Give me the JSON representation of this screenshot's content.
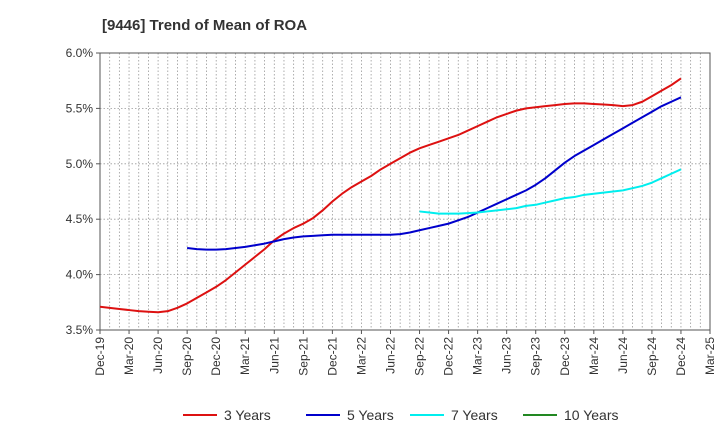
{
  "chart_data": {
    "type": "line",
    "title": "[9446]  Trend of Mean of ROA",
    "x_ticks": [
      "Dec-19",
      "Mar-20",
      "Jun-20",
      "Sep-20",
      "Dec-20",
      "Mar-21",
      "Jun-21",
      "Sep-21",
      "Dec-21",
      "Mar-22",
      "Jun-22",
      "Sep-22",
      "Dec-22",
      "Mar-23",
      "Jun-23",
      "Sep-23",
      "Dec-23",
      "Mar-24",
      "Jun-24",
      "Sep-24",
      "Dec-24",
      "Mar-25"
    ],
    "y_ticks": [
      "3.5%",
      "4.0%",
      "4.5%",
      "5.0%",
      "5.5%",
      "6.0%"
    ],
    "ylim": [
      3.5,
      6.0
    ],
    "grid": true,
    "legend_position": "bottom",
    "series": [
      {
        "name": "3 Years",
        "color": "#dd1111",
        "points": [
          [
            "Dec-19",
            3.71
          ],
          [
            "Jan-20",
            3.7
          ],
          [
            "Feb-20",
            3.69
          ],
          [
            "Mar-20",
            3.68
          ],
          [
            "Apr-20",
            3.67
          ],
          [
            "May-20",
            3.665
          ],
          [
            "Jun-20",
            3.66
          ],
          [
            "Jul-20",
            3.67
          ],
          [
            "Aug-20",
            3.7
          ],
          [
            "Sep-20",
            3.74
          ],
          [
            "Oct-20",
            3.79
          ],
          [
            "Nov-20",
            3.84
          ],
          [
            "Dec-20",
            3.89
          ],
          [
            "Jan-21",
            3.95
          ],
          [
            "Feb-21",
            4.02
          ],
          [
            "Mar-21",
            4.09
          ],
          [
            "Apr-21",
            4.16
          ],
          [
            "May-21",
            4.23
          ],
          [
            "Jun-21",
            4.31
          ],
          [
            "Jul-21",
            4.37
          ],
          [
            "Aug-21",
            4.42
          ],
          [
            "Sep-21",
            4.46
          ],
          [
            "Oct-21",
            4.51
          ],
          [
            "Nov-21",
            4.58
          ],
          [
            "Dec-21",
            4.66
          ],
          [
            "Jan-22",
            4.73
          ],
          [
            "Feb-22",
            4.79
          ],
          [
            "Mar-22",
            4.84
          ],
          [
            "Apr-22",
            4.89
          ],
          [
            "May-22",
            4.95
          ],
          [
            "Jun-22",
            5.0
          ],
          [
            "Jul-22",
            5.05
          ],
          [
            "Aug-22",
            5.1
          ],
          [
            "Sep-22",
            5.14
          ],
          [
            "Oct-22",
            5.17
          ],
          [
            "Nov-22",
            5.2
          ],
          [
            "Dec-22",
            5.23
          ],
          [
            "Jan-23",
            5.26
          ],
          [
            "Feb-23",
            5.3
          ],
          [
            "Mar-23",
            5.34
          ],
          [
            "Apr-23",
            5.38
          ],
          [
            "May-23",
            5.42
          ],
          [
            "Jun-23",
            5.45
          ],
          [
            "Jul-23",
            5.48
          ],
          [
            "Aug-23",
            5.5
          ],
          [
            "Sep-23",
            5.51
          ],
          [
            "Oct-23",
            5.52
          ],
          [
            "Nov-23",
            5.53
          ],
          [
            "Dec-23",
            5.54
          ],
          [
            "Jan-24",
            5.545
          ],
          [
            "Feb-24",
            5.545
          ],
          [
            "Mar-24",
            5.54
          ],
          [
            "Apr-24",
            5.535
          ],
          [
            "May-24",
            5.53
          ],
          [
            "Jun-24",
            5.52
          ],
          [
            "Jul-24",
            5.53
          ],
          [
            "Aug-24",
            5.56
          ],
          [
            "Sep-24",
            5.61
          ],
          [
            "Oct-24",
            5.66
          ],
          [
            "Nov-24",
            5.71
          ],
          [
            "Dec-24",
            5.77
          ]
        ]
      },
      {
        "name": "5 Years",
        "color": "#0000cc",
        "points": [
          [
            "Sep-20",
            4.24
          ],
          [
            "Oct-20",
            4.23
          ],
          [
            "Nov-20",
            4.225
          ],
          [
            "Dec-20",
            4.225
          ],
          [
            "Jan-21",
            4.23
          ],
          [
            "Feb-21",
            4.24
          ],
          [
            "Mar-21",
            4.25
          ],
          [
            "Apr-21",
            4.265
          ],
          [
            "May-21",
            4.28
          ],
          [
            "Jun-21",
            4.3
          ],
          [
            "Jul-21",
            4.32
          ],
          [
            "Aug-21",
            4.335
          ],
          [
            "Sep-21",
            4.345
          ],
          [
            "Oct-21",
            4.35
          ],
          [
            "Nov-21",
            4.355
          ],
          [
            "Dec-21",
            4.36
          ],
          [
            "Jan-22",
            4.36
          ],
          [
            "Feb-22",
            4.36
          ],
          [
            "Mar-22",
            4.36
          ],
          [
            "Apr-22",
            4.36
          ],
          [
            "May-22",
            4.36
          ],
          [
            "Jun-22",
            4.36
          ],
          [
            "Jul-22",
            4.365
          ],
          [
            "Aug-22",
            4.38
          ],
          [
            "Sep-22",
            4.4
          ],
          [
            "Oct-22",
            4.42
          ],
          [
            "Nov-22",
            4.44
          ],
          [
            "Dec-22",
            4.46
          ],
          [
            "Jan-23",
            4.49
          ],
          [
            "Feb-23",
            4.52
          ],
          [
            "Mar-23",
            4.56
          ],
          [
            "Apr-23",
            4.6
          ],
          [
            "May-23",
            4.64
          ],
          [
            "Jun-23",
            4.68
          ],
          [
            "Jul-23",
            4.72
          ],
          [
            "Aug-23",
            4.76
          ],
          [
            "Sep-23",
            4.81
          ],
          [
            "Oct-23",
            4.87
          ],
          [
            "Nov-23",
            4.94
          ],
          [
            "Dec-23",
            5.01
          ],
          [
            "Jan-24",
            5.07
          ],
          [
            "Feb-24",
            5.12
          ],
          [
            "Mar-24",
            5.17
          ],
          [
            "Apr-24",
            5.22
          ],
          [
            "May-24",
            5.27
          ],
          [
            "Jun-24",
            5.32
          ],
          [
            "Jul-24",
            5.37
          ],
          [
            "Aug-24",
            5.42
          ],
          [
            "Sep-24",
            5.47
          ],
          [
            "Oct-24",
            5.52
          ],
          [
            "Nov-24",
            5.56
          ],
          [
            "Dec-24",
            5.6
          ]
        ]
      },
      {
        "name": "7 Years",
        "color": "#00eeee",
        "points": [
          [
            "Sep-22",
            4.57
          ],
          [
            "Oct-22",
            4.56
          ],
          [
            "Nov-22",
            4.55
          ],
          [
            "Dec-22",
            4.55
          ],
          [
            "Jan-23",
            4.55
          ],
          [
            "Feb-23",
            4.555
          ],
          [
            "Mar-23",
            4.56
          ],
          [
            "Apr-23",
            4.57
          ],
          [
            "May-23",
            4.58
          ],
          [
            "Jun-23",
            4.59
          ],
          [
            "Jul-23",
            4.6
          ],
          [
            "Aug-23",
            4.62
          ],
          [
            "Sep-23",
            4.63
          ],
          [
            "Oct-23",
            4.65
          ],
          [
            "Nov-23",
            4.67
          ],
          [
            "Dec-23",
            4.69
          ],
          [
            "Jan-24",
            4.7
          ],
          [
            "Feb-24",
            4.72
          ],
          [
            "Mar-24",
            4.73
          ],
          [
            "Apr-24",
            4.74
          ],
          [
            "May-24",
            4.75
          ],
          [
            "Jun-24",
            4.76
          ],
          [
            "Jul-24",
            4.78
          ],
          [
            "Aug-24",
            4.8
          ],
          [
            "Sep-24",
            4.83
          ],
          [
            "Oct-24",
            4.87
          ],
          [
            "Nov-24",
            4.91
          ],
          [
            "Dec-24",
            4.95
          ]
        ]
      },
      {
        "name": "10 Years",
        "color": "#228822",
        "points": []
      }
    ]
  }
}
